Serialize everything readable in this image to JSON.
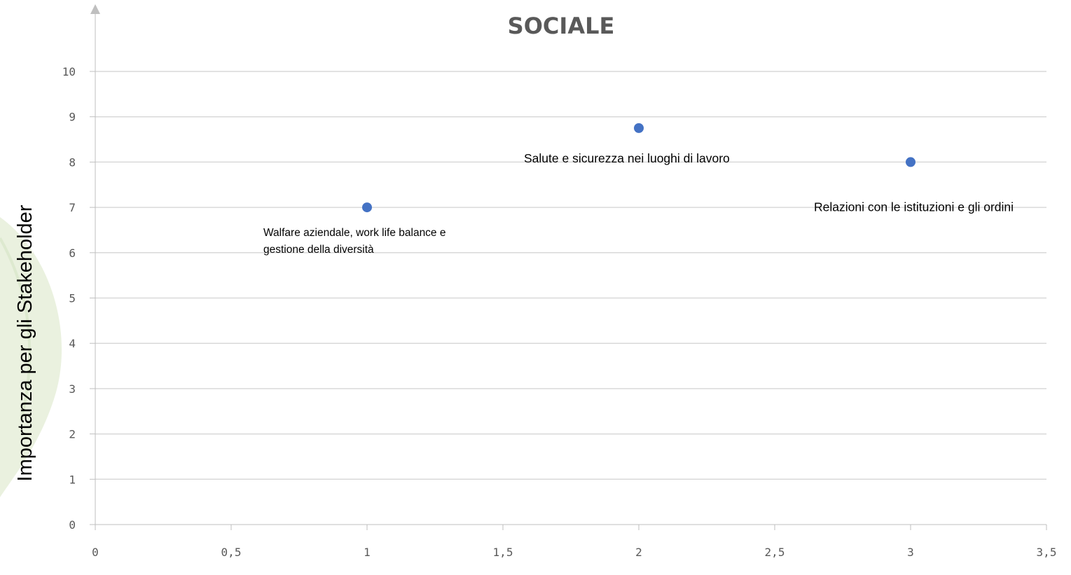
{
  "chart_data": {
    "type": "scatter",
    "title": "SOCIALE",
    "xlabel": "",
    "ylabel": "Importanza per gli Stakeholder",
    "xlim": [
      0,
      3.5
    ],
    "ylim": [
      0,
      10
    ],
    "x_ticks": [
      "0",
      "0,5",
      "1",
      "1,5",
      "2",
      "2,5",
      "3",
      "3,5"
    ],
    "y_ticks": [
      "0",
      "1",
      "2",
      "3",
      "4",
      "5",
      "6",
      "7",
      "8",
      "9",
      "10"
    ],
    "grid": "horizontal",
    "legend": "none",
    "points": [
      {
        "x": 1,
        "y": 7.0,
        "label": [
          "Walfare aziendale, work life balance e",
          "gestione della diversità"
        ]
      },
      {
        "x": 2,
        "y": 8.75,
        "label": [
          "Salute e sicurezza nei luoghi di lavoro"
        ]
      },
      {
        "x": 3,
        "y": 8.0,
        "label": [
          "Relazioni con le istituzioni e gli ordini"
        ]
      }
    ]
  },
  "colors": {
    "marker": "#4472c4",
    "gridline": "#d9d9d9",
    "axis": "#bfbfbf",
    "title": "#595959",
    "tick_text": "#595959",
    "background_leaf": "#eaf1df"
  }
}
